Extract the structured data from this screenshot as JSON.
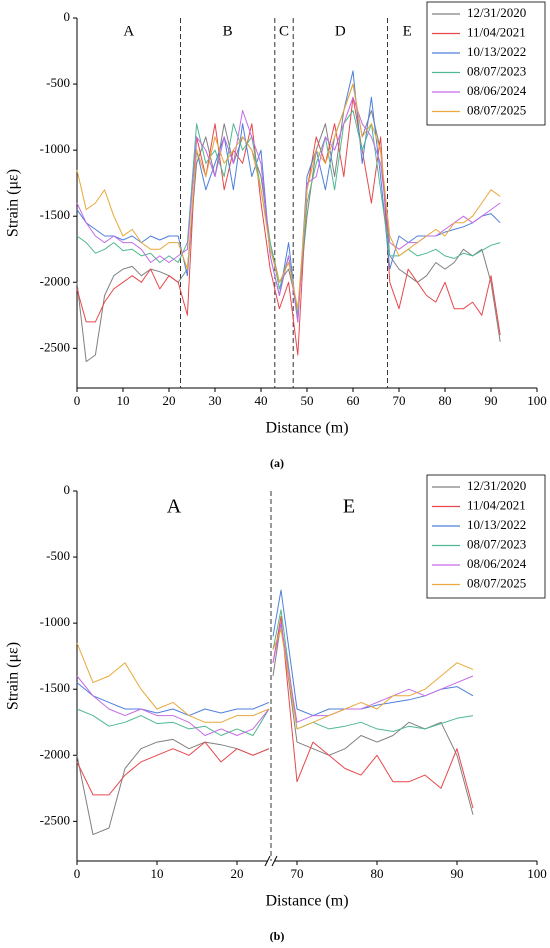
{
  "chart_data": [
    {
      "type": "line",
      "caption": "(a)",
      "xlabel": "Distance (m)",
      "ylabel": "Strain (με)",
      "xlim": [
        0,
        100
      ],
      "ylim": [
        -2800,
        0
      ],
      "xticks": [
        0,
        10,
        20,
        30,
        40,
        50,
        60,
        70,
        80,
        90,
        100
      ],
      "yticks": [
        0,
        -500,
        -1000,
        -1500,
        -2000,
        -2500
      ],
      "legend": "upper right",
      "boundaries": [
        22.5,
        43,
        47,
        67.5
      ],
      "region_labels": [
        "A",
        "B",
        "C",
        "D",
        "E"
      ],
      "x": [
        0,
        2,
        4,
        6,
        8,
        10,
        12,
        14,
        16,
        18,
        20,
        22,
        24,
        26,
        28,
        30,
        32,
        34,
        36,
        38,
        40,
        42,
        44,
        46,
        48,
        50,
        52,
        54,
        56,
        58,
        60,
        62,
        64,
        66,
        68,
        70,
        72,
        74,
        76,
        78,
        80,
        82,
        84,
        86,
        88,
        90,
        92
      ],
      "series": [
        {
          "name": "12/31/2020",
          "color": "#808080",
          "values": [
            -2000,
            -2600,
            -2550,
            -2100,
            -1950,
            -1900,
            -1880,
            -1950,
            -1900,
            -1920,
            -1950,
            -2000,
            -1900,
            -1100,
            -900,
            -1200,
            -800,
            -1100,
            -900,
            -1000,
            -1200,
            -1700,
            -2000,
            -1900,
            -2200,
            -1500,
            -1000,
            -800,
            -1200,
            -700,
            -500,
            -900,
            -700,
            -1000,
            -1800,
            -1900,
            -1950,
            -2000,
            -1950,
            -1850,
            -1900,
            -1850,
            -1750,
            -1800,
            -1750,
            -2000,
            -2450
          ]
        },
        {
          "name": "11/04/2021",
          "color": "#e8474a",
          "values": [
            -2050,
            -2300,
            -2300,
            -2150,
            -2050,
            -2000,
            -1950,
            -2000,
            -1900,
            -2050,
            -1950,
            -2000,
            -2250,
            -900,
            -1200,
            -800,
            -1300,
            -1000,
            -1100,
            -800,
            -1400,
            -1900,
            -2200,
            -2000,
            -2550,
            -1300,
            -900,
            -1100,
            -800,
            -1200,
            -600,
            -1000,
            -1400,
            -900,
            -2000,
            -2200,
            -1900,
            -2000,
            -2100,
            -2150,
            -2000,
            -2200,
            -2200,
            -2150,
            -2250,
            -1950,
            -2400
          ]
        },
        {
          "name": "10/13/2022",
          "color": "#4f7fdc",
          "values": [
            -1450,
            -1550,
            -1600,
            -1650,
            -1650,
            -1680,
            -1650,
            -1700,
            -1650,
            -1680,
            -1650,
            -1650,
            -1950,
            -1000,
            -1300,
            -1100,
            -900,
            -1300,
            -800,
            -1200,
            -1000,
            -1800,
            -2100,
            -1700,
            -2300,
            -1200,
            -1000,
            -1300,
            -900,
            -700,
            -400,
            -1100,
            -600,
            -1200,
            -1900,
            -1650,
            -1700,
            -1650,
            -1650,
            -1650,
            -1620,
            -1600,
            -1580,
            -1550,
            -1500,
            -1480,
            -1550
          ]
        },
        {
          "name": "08/07/2023",
          "color": "#4fb890",
          "values": [
            -1650,
            -1700,
            -1780,
            -1750,
            -1700,
            -1760,
            -1750,
            -1800,
            -1780,
            -1850,
            -1800,
            -1850,
            -1700,
            -800,
            -1100,
            -1000,
            -1200,
            -800,
            -1000,
            -900,
            -1300,
            -1700,
            -2050,
            -1800,
            -2250,
            -1400,
            -1100,
            -900,
            -1300,
            -800,
            -700,
            -1000,
            -800,
            -1300,
            -1800,
            -1800,
            -1750,
            -1800,
            -1780,
            -1750,
            -1800,
            -1820,
            -1780,
            -1800,
            -1760,
            -1720,
            -1700
          ]
        },
        {
          "name": "08/06/2024",
          "color": "#c46be8",
          "values": [
            -1400,
            -1550,
            -1650,
            -1700,
            -1650,
            -1700,
            -1700,
            -1750,
            -1850,
            -1800,
            -1850,
            -1800,
            -1750,
            -900,
            -1000,
            -1200,
            -900,
            -1100,
            -700,
            -900,
            -1100,
            -1800,
            -2100,
            -1800,
            -2300,
            -1250,
            -1200,
            -900,
            -1000,
            -800,
            -600,
            -800,
            -900,
            -1100,
            -1700,
            -1750,
            -1700,
            -1700,
            -1650,
            -1650,
            -1600,
            -1550,
            -1500,
            -1550,
            -1500,
            -1450,
            -1400
          ]
        },
        {
          "name": "08/07/2025",
          "color": "#e8a83a",
          "values": [
            -1150,
            -1450,
            -1400,
            -1300,
            -1500,
            -1650,
            -1600,
            -1700,
            -1750,
            -1750,
            -1700,
            -1700,
            -1900,
            -1000,
            -1200,
            -900,
            -1100,
            -1000,
            -900,
            -1000,
            -1300,
            -1750,
            -2000,
            -1850,
            -2200,
            -1300,
            -1000,
            -1100,
            -900,
            -700,
            -500,
            -900,
            -800,
            -1000,
            -1650,
            -1800,
            -1750,
            -1700,
            -1650,
            -1600,
            -1650,
            -1550,
            -1550,
            -1500,
            -1400,
            -1300,
            -1350
          ]
        }
      ]
    },
    {
      "type": "line",
      "caption": "(b)",
      "xlabel": "Distance (m)",
      "ylabel": "Strain (με)",
      "xlim": [
        0,
        100
      ],
      "xbreak": [
        24,
        67
      ],
      "ylim": [
        -2800,
        0
      ],
      "xticks": [
        0,
        10,
        20,
        70,
        80,
        90,
        100
      ],
      "yticks": [
        0,
        -500,
        -1000,
        -1500,
        -2000,
        -2500
      ],
      "legend": "upper right",
      "region_labels": [
        "A",
        "E"
      ],
      "x": [
        0,
        2,
        4,
        6,
        8,
        10,
        12,
        14,
        16,
        18,
        20,
        22,
        24,
        67,
        68,
        70,
        72,
        74,
        76,
        78,
        80,
        82,
        84,
        86,
        88,
        90,
        92
      ],
      "series": [
        {
          "name": "12/31/2020",
          "color": "#808080",
          "values": [
            -2000,
            -2600,
            -2550,
            -2100,
            -1950,
            -1900,
            -1880,
            -1950,
            -1900,
            -1920,
            -1950,
            -2000,
            -1950,
            -1400,
            -1000,
            -1900,
            -1950,
            -2000,
            -1950,
            -1850,
            -1900,
            -1850,
            -1750,
            -1800,
            -1750,
            -2000,
            -2450
          ]
        },
        {
          "name": "11/04/2021",
          "color": "#e8474a",
          "values": [
            -2050,
            -2300,
            -2300,
            -2150,
            -2050,
            -2000,
            -1950,
            -2000,
            -1900,
            -2050,
            -1950,
            -2000,
            -1950,
            -1300,
            -950,
            -2200,
            -1900,
            -2000,
            -2100,
            -2150,
            -2000,
            -2200,
            -2200,
            -2150,
            -2250,
            -1950,
            -2400
          ]
        },
        {
          "name": "10/13/2022",
          "color": "#4f7fdc",
          "values": [
            -1450,
            -1550,
            -1600,
            -1650,
            -1650,
            -1680,
            -1650,
            -1700,
            -1650,
            -1680,
            -1650,
            -1650,
            -1600,
            -1100,
            -750,
            -1650,
            -1700,
            -1650,
            -1650,
            -1650,
            -1620,
            -1600,
            -1580,
            -1550,
            -1500,
            -1480,
            -1550
          ]
        },
        {
          "name": "08/07/2023",
          "color": "#4fb890",
          "values": [
            -1650,
            -1700,
            -1780,
            -1750,
            -1700,
            -1760,
            -1750,
            -1800,
            -1780,
            -1850,
            -1800,
            -1850,
            -1650,
            -1200,
            -900,
            -1800,
            -1750,
            -1800,
            -1780,
            -1750,
            -1800,
            -1820,
            -1780,
            -1800,
            -1760,
            -1720,
            -1700
          ]
        },
        {
          "name": "08/06/2024",
          "color": "#c46be8",
          "values": [
            -1400,
            -1550,
            -1650,
            -1700,
            -1650,
            -1700,
            -1700,
            -1750,
            -1850,
            -1800,
            -1850,
            -1800,
            -1650,
            -1300,
            -1000,
            -1750,
            -1700,
            -1700,
            -1650,
            -1650,
            -1600,
            -1550,
            -1500,
            -1550,
            -1500,
            -1450,
            -1400
          ]
        },
        {
          "name": "08/07/2025",
          "color": "#e8a83a",
          "values": [
            -1150,
            -1450,
            -1400,
            -1300,
            -1500,
            -1650,
            -1600,
            -1700,
            -1750,
            -1750,
            -1700,
            -1700,
            -1650,
            -1200,
            -1050,
            -1800,
            -1750,
            -1700,
            -1650,
            -1600,
            -1650,
            -1550,
            -1550,
            -1500,
            -1400,
            -1300,
            -1350
          ]
        }
      ]
    }
  ]
}
